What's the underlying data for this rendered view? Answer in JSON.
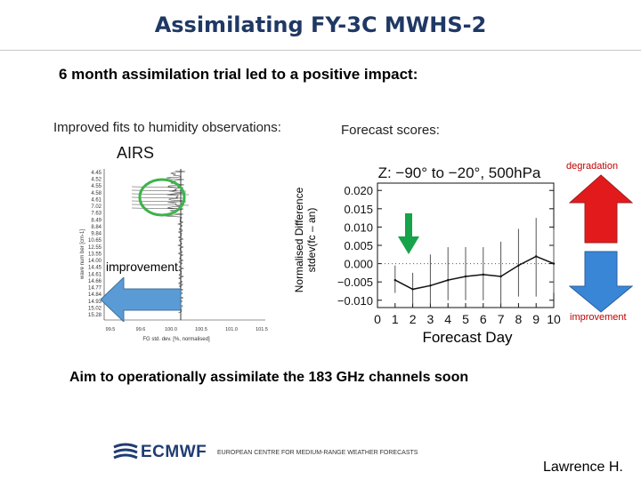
{
  "slide": {
    "title": "Assimilating FY-3C MWHS-2",
    "subtitle": "6 month assimilation trial led to a positive impact:",
    "left_caption": "Improved fits to humidity observations:",
    "right_caption": "Forecast scores:",
    "goal": "Aim to operationally assimilate the 183 GHz channels soon",
    "author": "Lawrence H."
  },
  "left_panel": {
    "label": "AIRS",
    "improvement_label": "improvement",
    "y_axis_label": "wave num ber [cm-1]",
    "x_axis_label": "FG std. dev. [%, normalised]",
    "channels": [
      "4.45",
      "4.52",
      "4.55",
      "4.58",
      "4.61",
      "7.02",
      "7.63",
      "8.49",
      "8.84",
      "9.84",
      "10.65",
      "12.55",
      "13.55",
      "14.00",
      "14.45",
      "14.61",
      "14.66",
      "14.77",
      "14.84",
      "14.93",
      "15.02",
      "15.28"
    ],
    "x_ticks": [
      "99.5",
      "99.6",
      "100.0",
      "100.5",
      "101.0",
      "101.5"
    ],
    "colors": {
      "circle": "#3cb44b",
      "arrow": "#5b9bd5"
    }
  },
  "right_panel": {
    "y_axis_label": "Normalised Difference\nstdev(fc – an)",
    "xlabel": "Forecast Day",
    "degradation_label": "degradation",
    "improvement_label": "improvement",
    "colors": {
      "up_arrow": "#e31a1c",
      "down_arrow": "#3a86d6",
      "green_arrow": "#16a34a"
    }
  },
  "chart_data": {
    "type": "line",
    "title": "Z: −90° to −20°, 500hPa",
    "xlabel": "",
    "ylabel": "",
    "x": [
      0,
      1,
      2,
      3,
      4,
      5,
      6,
      7,
      8,
      9,
      10
    ],
    "x_ticks": [
      "0",
      "1",
      "2",
      "3",
      "4",
      "5",
      "6",
      "7",
      "8",
      "9",
      "10"
    ],
    "y_ticks": [
      "0.020",
      "0.015",
      "0.010",
      "0.005",
      "0.000",
      "−0.005",
      "−0.010"
    ],
    "ylim": [
      -0.012,
      0.022
    ],
    "xlim": [
      0,
      10
    ],
    "series": [
      {
        "values": [
          null,
          -0.0045,
          -0.007,
          -0.006,
          -0.0045,
          -0.0035,
          -0.003,
          -0.0035,
          -0.0005,
          0.002,
          0.0
        ],
        "err_lo": [
          null,
          -0.008,
          -0.011,
          -0.011,
          -0.01,
          -0.01,
          -0.01,
          -0.011,
          -0.009,
          -0.009,
          -0.008
        ],
        "err_hi": [
          null,
          -0.0005,
          -0.0025,
          0.0025,
          0.0045,
          0.0045,
          0.0045,
          0.006,
          0.0095,
          0.0125,
          0.0095
        ]
      }
    ],
    "zero_line": true,
    "grid": false
  },
  "footer": {
    "logo_text": "ECMWF",
    "centre_text": "EUROPEAN CENTRE FOR MEDIUM-RANGE WEATHER FORECASTS"
  }
}
